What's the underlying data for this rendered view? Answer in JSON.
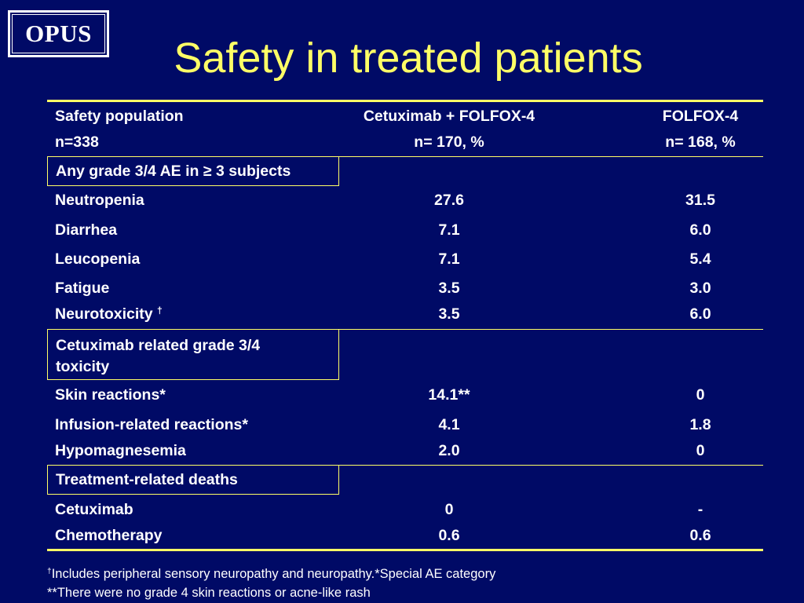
{
  "logo": {
    "text": "OPUS"
  },
  "title": "Safety in treated patients",
  "table": {
    "header": {
      "col1_line1": "Safety population",
      "col1_line2": "n=338",
      "col2_line1": "Cetuximab + FOLFOX-4",
      "col2_line2": "n= 170, %",
      "col3_line1": "FOLFOX-4",
      "col3_line2": "n= 168, %"
    },
    "section1": {
      "label": "Any grade 3/4 AE in ≥ 3 subjects",
      "rows": [
        {
          "label": "Neutropenia",
          "cetuximab": "27.6",
          "folfox": "31.5"
        },
        {
          "label": "Diarrhea",
          "cetuximab": "7.1",
          "folfox": "6.0"
        },
        {
          "label": "Leucopenia",
          "cetuximab": "7.1",
          "folfox": "5.4"
        },
        {
          "label": "Fatigue",
          "cetuximab": "3.5",
          "folfox": "3.0"
        },
        {
          "label": "Neurotoxicity ",
          "sup": "†",
          "cetuximab": "3.5",
          "folfox": "6.0"
        }
      ]
    },
    "section2": {
      "label_line1": "Cetuximab related grade 3/4",
      "label_line2": "toxicity",
      "rows": [
        {
          "label": "Skin reactions*",
          "cetuximab": "14.1**",
          "folfox": "0"
        },
        {
          "label": "Infusion-related reactions*",
          "cetuximab": "4.1",
          "folfox": "1.8"
        },
        {
          "label": "Hypomagnesemia",
          "cetuximab": "2.0",
          "folfox": "0"
        }
      ]
    },
    "section3": {
      "label": "Treatment-related deaths",
      "rows": [
        {
          "label": "Cetuximab",
          "cetuximab": "0",
          "folfox": "-"
        },
        {
          "label": "Chemotherapy",
          "cetuximab": "0.6",
          "folfox": "0.6"
        }
      ]
    }
  },
  "footnotes": {
    "line1_sup": "†",
    "line1": "Includes peripheral sensory neuropathy and neuropathy.*Special AE category",
    "line2": "**There were no grade 4 skin reactions or acne-like rash"
  },
  "colors": {
    "background": "#000a66",
    "title": "#ffff66",
    "rules": "#ffff66",
    "text": "#ffffff"
  }
}
